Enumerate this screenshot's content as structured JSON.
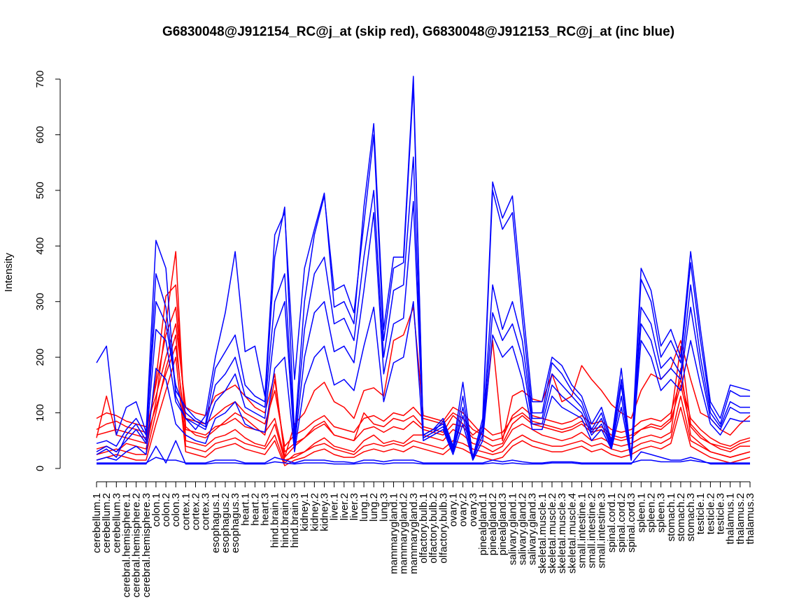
{
  "chart_data": {
    "type": "line",
    "title": "G6830048@J912154_RC@j_at (skip red), G6830048@J912153_RC@j_at (inc blue)",
    "xlabel": "",
    "ylabel": "Intensity",
    "ylim": [
      0,
      700
    ],
    "yticks": [
      0,
      100,
      200,
      300,
      400,
      500,
      600,
      700
    ],
    "grid": false,
    "categories": [
      "cerebellum.1",
      "cerebellum.2",
      "cerebellum.3",
      "cerebral.hemisphere.1",
      "cerebral.hemisphere.2",
      "cerebral.hemisphere.3",
      "colon.1",
      "colon.2",
      "colon.3",
      "cortex.1",
      "cortex.2",
      "cortex.3",
      "esophagus.1",
      "esophagus.2",
      "esophagus.3",
      "heart.1",
      "heart.2",
      "heart.3",
      "hind.brain.1",
      "hind.brain.2",
      "hind.brain.3",
      "kidney.1",
      "kidney.2",
      "kidney.3",
      "liver.1",
      "liver.2",
      "liver.3",
      "lung.1",
      "lung.2",
      "lung.3",
      "mammarygland.1",
      "mammarygland.2",
      "mammarygland.3",
      "olfactory.bulb.1",
      "olfactory.bulb.2",
      "olfactory.bulb.3",
      "ovary.1",
      "ovary.2",
      "ovary.3",
      "pinealgland.1",
      "pinealgland.2",
      "pinealgland.3",
      "salivary.gland.1",
      "salivary.gland.2",
      "salivary.gland.3",
      "skeletal.muscle.1",
      "skeletal.muscle.2",
      "skeletal.muscle.3",
      "skeletal.muscle.4",
      "small.intestine.1",
      "small.intestine.2",
      "small.intestine.3",
      "spinal.cord.1",
      "spinal.cord.2",
      "spinal.cord.3",
      "spleen.1",
      "spleen.2",
      "spleen.3",
      "stomach.1",
      "stomach.2",
      "stomach.3",
      "testicle.1",
      "testicle.2",
      "testicle.3",
      "thalamus.1",
      "thalamus.2",
      "thalamus.3"
    ],
    "series": [
      {
        "color": "#ff0000",
        "values": [
          55,
          130,
          60,
          55,
          50,
          45,
          160,
          310,
          330,
          75,
          60,
          55,
          70,
          85,
          100,
          90,
          75,
          60,
          160,
          30,
          45,
          55,
          75,
          85,
          60,
          55,
          50,
          100,
          80,
          75,
          90,
          85,
          95,
          75,
          70,
          65,
          95,
          80,
          60,
          75,
          60,
          65,
          90,
          100,
          85,
          80,
          75,
          70,
          75,
          85,
          70,
          75,
          60,
          55,
          60,
          70,
          80,
          75,
          90,
          220,
          80,
          60,
          45,
          35,
          30,
          40,
          40
        ]
      },
      {
        "color": "#ff0000",
        "values": [
          35,
          40,
          30,
          45,
          40,
          35,
          120,
          260,
          390,
          50,
          45,
          40,
          55,
          60,
          70,
          55,
          45,
          40,
          80,
          15,
          20,
          30,
          45,
          55,
          40,
          35,
          30,
          50,
          60,
          45,
          50,
          45,
          60,
          60,
          55,
          50,
          70,
          60,
          45,
          40,
          30,
          40,
          70,
          80,
          70,
          60,
          55,
          50,
          55,
          65,
          50,
          55,
          45,
          40,
          45,
          55,
          60,
          55,
          65,
          180,
          60,
          45,
          30,
          25,
          20,
          25,
          30
        ]
      },
      {
        "color": "#ff0000",
        "values": [
          70,
          80,
          85,
          75,
          70,
          65,
          150,
          240,
          290,
          90,
          85,
          80,
          95,
          110,
          120,
          100,
          90,
          80,
          140,
          40,
          60,
          70,
          85,
          95,
          75,
          70,
          65,
          90,
          95,
          85,
          100,
          95,
          110,
          90,
          85,
          80,
          100,
          90,
          70,
          60,
          50,
          55,
          95,
          110,
          95,
          90,
          85,
          80,
          85,
          95,
          80,
          85,
          70,
          65,
          70,
          85,
          90,
          85,
          100,
          160,
          90,
          70,
          55,
          45,
          40,
          50,
          55
        ]
      },
      {
        "color": "#ff0000",
        "values": [
          15,
          20,
          25,
          20,
          15,
          15,
          80,
          140,
          200,
          30,
          25,
          20,
          35,
          40,
          45,
          35,
          30,
          25,
          50,
          5,
          15,
          20,
          30,
          35,
          25,
          20,
          20,
          30,
          35,
          30,
          35,
          30,
          40,
          35,
          30,
          25,
          40,
          35,
          25,
          20,
          15,
          20,
          40,
          50,
          40,
          35,
          30,
          30,
          35,
          40,
          30,
          35,
          25,
          20,
          25,
          35,
          40,
          35,
          45,
          110,
          40,
          30,
          20,
          15,
          10,
          15,
          20
        ]
      },
      {
        "color": "#ff0000",
        "values": [
          90,
          100,
          95,
          85,
          80,
          75,
          130,
          200,
          260,
          110,
          100,
          95,
          130,
          140,
          150,
          130,
          110,
          100,
          170,
          20,
          80,
          100,
          140,
          155,
          120,
          110,
          90,
          140,
          145,
          130,
          230,
          240,
          290,
          95,
          90,
          85,
          110,
          100,
          80,
          60,
          230,
          50,
          130,
          140,
          125,
          120,
          170,
          120,
          130,
          185,
          160,
          140,
          115,
          100,
          90,
          140,
          170,
          160,
          180,
          230,
          160,
          100,
          90,
          70,
          60,
          80,
          95
        ]
      },
      {
        "color": "#ff0000",
        "values": [
          25,
          30,
          35,
          30,
          25,
          25,
          100,
          180,
          240,
          40,
          35,
          30,
          45,
          50,
          55,
          45,
          40,
          35,
          60,
          10,
          25,
          30,
          40,
          45,
          35,
          30,
          25,
          40,
          45,
          40,
          45,
          40,
          50,
          45,
          40,
          35,
          50,
          45,
          35,
          30,
          25,
          30,
          50,
          60,
          50,
          45,
          40,
          40,
          45,
          50,
          40,
          45,
          35,
          30,
          35,
          45,
          50,
          45,
          55,
          130,
          50,
          40,
          30,
          25,
          20,
          25,
          30
        ]
      },
      {
        "color": "#ff0000",
        "values": [
          60,
          65,
          70,
          65,
          60,
          55,
          110,
          170,
          220,
          70,
          65,
          60,
          75,
          80,
          90,
          75,
          70,
          65,
          90,
          20,
          40,
          55,
          70,
          80,
          60,
          55,
          50,
          70,
          75,
          65,
          75,
          70,
          85,
          70,
          65,
          60,
          80,
          75,
          55,
          50,
          40,
          45,
          80,
          95,
          80,
          75,
          70,
          65,
          70,
          80,
          65,
          70,
          55,
          50,
          55,
          70,
          75,
          70,
          85,
          150,
          75,
          55,
          45,
          40,
          35,
          45,
          50
        ]
      },
      {
        "color": "#0000ff",
        "values": [
          190,
          220,
          60,
          110,
          120,
          65,
          410,
          360,
          130,
          90,
          70,
          95,
          200,
          280,
          390,
          210,
          220,
          130,
          420,
          460,
          160,
          360,
          430,
          495,
          290,
          300,
          260,
          470,
          620,
          250,
          380,
          380,
          705,
          60,
          70,
          90,
          40,
          155,
          20,
          90,
          515,
          450,
          490,
          300,
          120,
          120,
          200,
          185,
          150,
          130,
          80,
          110,
          50,
          180,
          20,
          360,
          320,
          220,
          250,
          200,
          390,
          250,
          120,
          90,
          150,
          145,
          140
        ]
      },
      {
        "color": "#0000ff",
        "values": [
          25,
          35,
          20,
          60,
          80,
          50,
          350,
          290,
          140,
          110,
          90,
          80,
          180,
          210,
          240,
          150,
          130,
          120,
          380,
          470,
          60,
          300,
          420,
          490,
          320,
          330,
          280,
          440,
          600,
          230,
          360,
          370,
          690,
          55,
          65,
          85,
          35,
          130,
          15,
          80,
          500,
          430,
          460,
          270,
          100,
          100,
          190,
          170,
          140,
          120,
          70,
          100,
          45,
          160,
          15,
          340,
          300,
          200,
          230,
          190,
          370,
          230,
          110,
          80,
          140,
          130,
          130
        ]
      },
      {
        "color": "#0000ff",
        "values": [
          10,
          10,
          10,
          10,
          10,
          10,
          20,
          15,
          15,
          10,
          10,
          10,
          15,
          15,
          15,
          10,
          10,
          10,
          20,
          15,
          10,
          15,
          15,
          15,
          12,
          12,
          10,
          15,
          15,
          12,
          15,
          15,
          15,
          10,
          10,
          10,
          10,
          10,
          10,
          10,
          15,
          12,
          15,
          12,
          10,
          10,
          12,
          12,
          12,
          10,
          10,
          10,
          10,
          10,
          10,
          15,
          15,
          12,
          12,
          12,
          15,
          12,
          10,
          10,
          10,
          10,
          10
        ]
      },
      {
        "color": "#0000ff",
        "values": [
          45,
          50,
          40,
          70,
          90,
          60,
          300,
          260,
          150,
          100,
          85,
          75,
          150,
          170,
          200,
          130,
          120,
          110,
          300,
          350,
          50,
          250,
          350,
          380,
          260,
          270,
          230,
          380,
          500,
          200,
          320,
          330,
          560,
          60,
          70,
          80,
          30,
          110,
          20,
          70,
          330,
          250,
          300,
          230,
          90,
          90,
          170,
          150,
          130,
          110,
          65,
          90,
          40,
          150,
          20,
          290,
          260,
          180,
          200,
          170,
          330,
          200,
          100,
          75,
          120,
          110,
          110
        ]
      },
      {
        "color": "#0000ff",
        "values": [
          15,
          20,
          15,
          30,
          40,
          25,
          180,
          160,
          80,
          60,
          50,
          45,
          90,
          100,
          120,
          80,
          70,
          65,
          180,
          200,
          30,
          150,
          200,
          220,
          150,
          160,
          140,
          220,
          290,
          120,
          190,
          200,
          300,
          50,
          60,
          70,
          25,
          80,
          15,
          50,
          240,
          200,
          220,
          160,
          70,
          70,
          130,
          110,
          100,
          90,
          50,
          70,
          35,
          110,
          15,
          230,
          200,
          140,
          160,
          140,
          230,
          150,
          80,
          60,
          90,
          85,
          85
        ]
      },
      {
        "color": "#0000ff",
        "values": [
          8,
          8,
          8,
          8,
          8,
          8,
          40,
          10,
          50,
          8,
          8,
          8,
          10,
          10,
          10,
          8,
          8,
          8,
          12,
          10,
          8,
          10,
          10,
          10,
          8,
          8,
          8,
          10,
          10,
          8,
          10,
          10,
          10,
          8,
          8,
          8,
          8,
          8,
          8,
          8,
          10,
          8,
          10,
          8,
          8,
          8,
          10,
          10,
          10,
          8,
          8,
          8,
          8,
          8,
          8,
          30,
          25,
          20,
          15,
          15,
          20,
          15,
          8,
          8,
          8,
          8,
          8
        ]
      },
      {
        "color": "#0000ff",
        "values": [
          30,
          40,
          30,
          50,
          70,
          45,
          250,
          230,
          120,
          90,
          80,
          70,
          120,
          140,
          170,
          110,
          100,
          90,
          250,
          300,
          40,
          200,
          280,
          300,
          210,
          220,
          190,
          320,
          460,
          170,
          260,
          270,
          480,
          55,
          65,
          75,
          30,
          95,
          18,
          60,
          280,
          230,
          260,
          200,
          80,
          80,
          150,
          130,
          115,
          100,
          60,
          80,
          38,
          130,
          18,
          260,
          230,
          160,
          180,
          160,
          290,
          180,
          90,
          70,
          110,
          100,
          100
        ]
      }
    ]
  }
}
